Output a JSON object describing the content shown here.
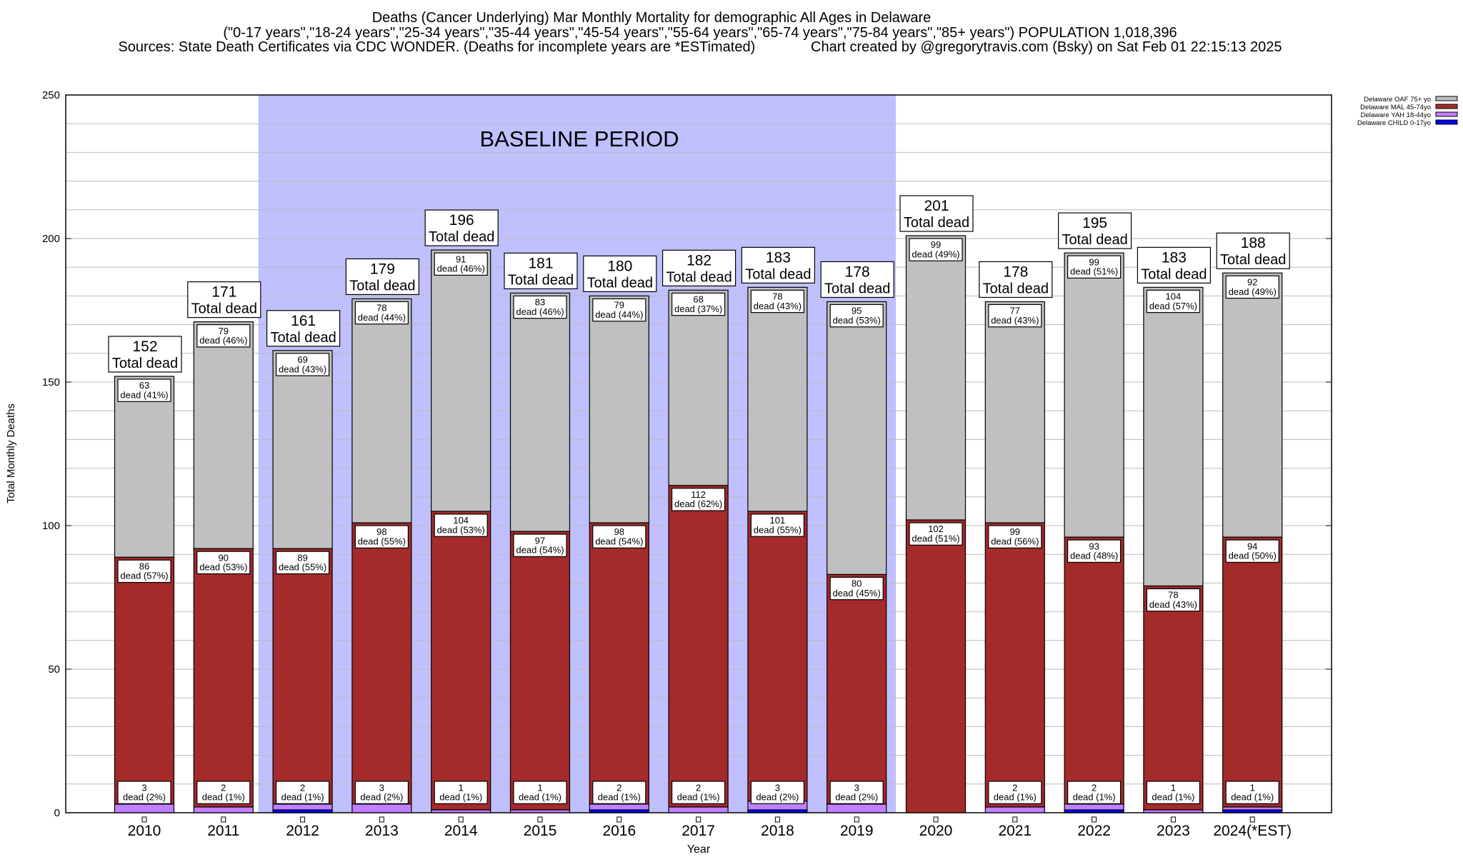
{
  "chart_data": {
    "type": "bar",
    "stacked": true,
    "title_lines": [
      "Deaths (Cancer Underlying) Mar Monthly Mortality for demographic All Ages in Delaware",
      "(\"0-17 years\",\"18-24 years\",\"25-34 years\",\"35-44 years\",\"45-54 years\",\"55-64 years\",\"65-74 years\",\"75-84 years\",\"85+ years\") POPULATION 1,018,396",
      "Sources: State Death Certificates via CDC WONDER. (Deaths for incomplete years are *ESTimated)              Chart created by @gregorytravis.com (Bsky) on Sat Feb 01 22:15:13 2025"
    ],
    "xlabel": "Year",
    "ylabel": "Total Monthly Deaths",
    "ylim": [
      0,
      250
    ],
    "yticks": [
      0,
      50,
      100,
      150,
      200,
      250
    ],
    "grid": true,
    "grid_step": 10,
    "legend_position": "top-right",
    "baseline": {
      "label": "BASELINE PERIOD",
      "from": "2012",
      "to": "2019",
      "color": "#c0c0ff"
    },
    "total_suffix": "Total dead",
    "dead_word": "dead",
    "series": [
      {
        "key": "child",
        "name": "Delaware CHILD 0-17yo",
        "color": "#0000ff"
      },
      {
        "key": "yah",
        "name": "Delaware YAH 18-44yo",
        "color": "#c080ff"
      },
      {
        "key": "mal",
        "name": "Delaware MAL 45-74yo",
        "color": "#a52a2a"
      },
      {
        "key": "oaf",
        "name": "Delaware OAF 75+ yo",
        "color": "#c0c0c0"
      }
    ],
    "categories": [
      "2010",
      "2011",
      "2012",
      "2013",
      "2014",
      "2015",
      "2016",
      "2017",
      "2018",
      "2019",
      "2020",
      "2021",
      "2022",
      "2023",
      "2024(*EST)"
    ],
    "values": {
      "child": [
        0,
        0,
        1,
        0,
        0,
        0,
        1,
        0,
        1,
        0,
        0,
        0,
        1,
        0,
        1
      ],
      "yah": [
        3,
        2,
        2,
        3,
        1,
        1,
        2,
        2,
        3,
        3,
        0,
        2,
        2,
        1,
        1
      ],
      "mal": [
        86,
        90,
        89,
        98,
        104,
        97,
        98,
        112,
        101,
        80,
        102,
        99,
        93,
        78,
        94
      ],
      "oaf": [
        63,
        79,
        69,
        78,
        91,
        83,
        79,
        68,
        78,
        95,
        99,
        77,
        99,
        104,
        92
      ]
    },
    "percents": {
      "yah": [
        2,
        1,
        1,
        2,
        1,
        1,
        1,
        1,
        2,
        2,
        null,
        1,
        1,
        1,
        1
      ],
      "mal": [
        57,
        53,
        55,
        55,
        53,
        54,
        54,
        62,
        55,
        45,
        51,
        56,
        48,
        43,
        50
      ],
      "oaf": [
        41,
        46,
        43,
        44,
        46,
        46,
        44,
        37,
        43,
        53,
        49,
        43,
        51,
        57,
        49
      ]
    },
    "totals": [
      152,
      171,
      161,
      179,
      196,
      181,
      180,
      182,
      183,
      178,
      201,
      178,
      195,
      183,
      188
    ]
  }
}
